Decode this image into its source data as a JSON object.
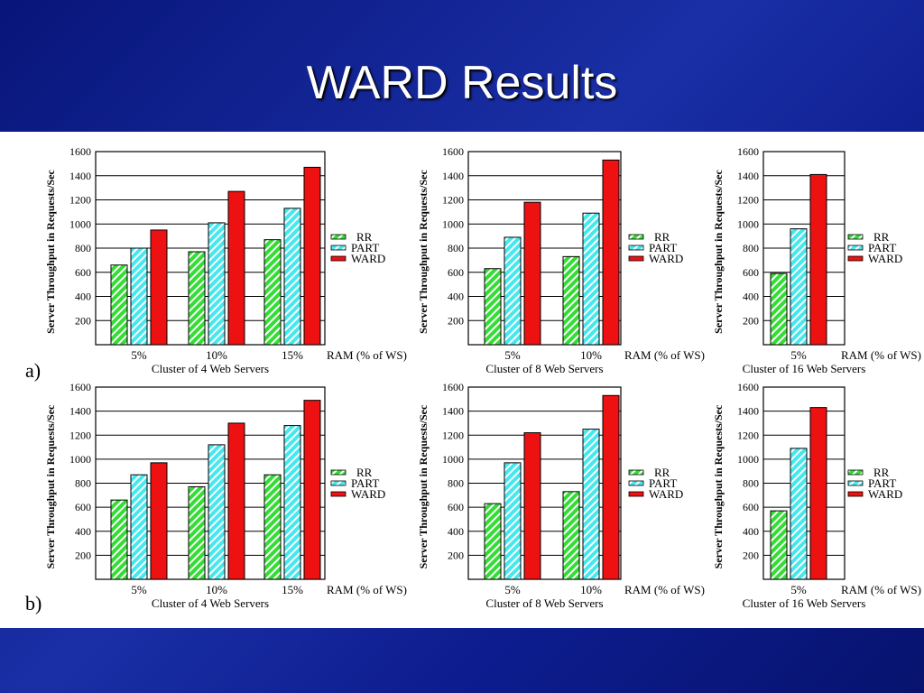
{
  "slide": {
    "title": "WARD Results"
  },
  "rows": [
    {
      "label": "a)"
    },
    {
      "label": "b)"
    }
  ],
  "axis_text": {
    "ylabel": "Server Throughput in Requests/Sec",
    "ram_label": "RAM (% of WS)"
  },
  "legend": [
    "RR",
    "PART",
    "WARD"
  ],
  "colors": {
    "RR": "#33dd33",
    "PART": "#44e8ee",
    "WARD": "#ee1111"
  },
  "chart_data": [
    {
      "type": "bar",
      "row": "a",
      "title": "Cluster of 4 Web Servers",
      "categories": [
        "5%",
        "10%",
        "15%"
      ],
      "ylim": [
        0,
        1600
      ],
      "yticks": [
        200,
        400,
        600,
        800,
        1000,
        1200,
        1400,
        1600
      ],
      "series": [
        {
          "name": "RR",
          "values": [
            660,
            770,
            870
          ]
        },
        {
          "name": "PART",
          "values": [
            800,
            1010,
            1130
          ]
        },
        {
          "name": "WARD",
          "values": [
            950,
            1270,
            1470
          ]
        }
      ]
    },
    {
      "type": "bar",
      "row": "a",
      "title": "Cluster of 8 Web Servers",
      "categories": [
        "5%",
        "10%"
      ],
      "ylim": [
        0,
        1600
      ],
      "yticks": [
        200,
        400,
        600,
        800,
        1000,
        1200,
        1400,
        1600
      ],
      "series": [
        {
          "name": "RR",
          "values": [
            630,
            730
          ]
        },
        {
          "name": "PART",
          "values": [
            890,
            1090
          ]
        },
        {
          "name": "WARD",
          "values": [
            1180,
            1530
          ]
        }
      ]
    },
    {
      "type": "bar",
      "row": "a",
      "title": "Cluster of 16 Web Servers",
      "categories": [
        "5%"
      ],
      "ylim": [
        0,
        1600
      ],
      "yticks": [
        200,
        400,
        600,
        800,
        1000,
        1200,
        1400,
        1600
      ],
      "series": [
        {
          "name": "RR",
          "values": [
            590
          ]
        },
        {
          "name": "PART",
          "values": [
            960
          ]
        },
        {
          "name": "WARD",
          "values": [
            1410
          ]
        }
      ]
    },
    {
      "type": "bar",
      "row": "b",
      "title": "Cluster of 4 Web Servers",
      "categories": [
        "5%",
        "10%",
        "15%"
      ],
      "ylim": [
        0,
        1600
      ],
      "yticks": [
        200,
        400,
        600,
        800,
        1000,
        1200,
        1400,
        1600
      ],
      "series": [
        {
          "name": "RR",
          "values": [
            660,
            770,
            870
          ]
        },
        {
          "name": "PART",
          "values": [
            870,
            1120,
            1280
          ]
        },
        {
          "name": "WARD",
          "values": [
            970,
            1300,
            1490
          ]
        }
      ]
    },
    {
      "type": "bar",
      "row": "b",
      "title": "Cluster of 8 Web Servers",
      "categories": [
        "5%",
        "10%"
      ],
      "ylim": [
        0,
        1600
      ],
      "yticks": [
        200,
        400,
        600,
        800,
        1000,
        1200,
        1400,
        1600
      ],
      "series": [
        {
          "name": "RR",
          "values": [
            630,
            730
          ]
        },
        {
          "name": "PART",
          "values": [
            970,
            1250
          ]
        },
        {
          "name": "WARD",
          "values": [
            1220,
            1530
          ]
        }
      ]
    },
    {
      "type": "bar",
      "row": "b",
      "title": "Cluster of 16 Web Servers",
      "categories": [
        "5%"
      ],
      "ylim": [
        0,
        1600
      ],
      "yticks": [
        200,
        400,
        600,
        800,
        1000,
        1200,
        1400,
        1600
      ],
      "series": [
        {
          "name": "RR",
          "values": [
            570
          ]
        },
        {
          "name": "PART",
          "values": [
            1090
          ]
        },
        {
          "name": "WARD",
          "values": [
            1430
          ]
        }
      ]
    }
  ]
}
